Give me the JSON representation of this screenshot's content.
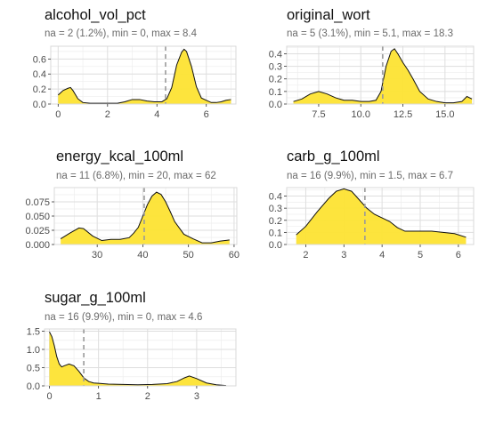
{
  "chart_data": [
    {
      "type": "area",
      "title": "alcohol_vol_pct",
      "subtitle": "na = 2 (1.2%), min = 0, max = 8.4",
      "xlim": [
        -0.3,
        7.2
      ],
      "ylim": [
        0,
        0.77
      ],
      "xticks": [
        0,
        2,
        4,
        6
      ],
      "xtick_labels": [
        "0",
        "2",
        "4",
        "6"
      ],
      "yticks": [
        0,
        0.2,
        0.4,
        0.6
      ],
      "ytick_labels": [
        "0.0",
        "0.2",
        "0.4",
        "0.6"
      ],
      "reference_line_x": 4.35,
      "grid": true,
      "x": [
        0,
        0.2,
        0.4,
        0.5,
        0.6,
        0.8,
        1.0,
        1.3,
        1.6,
        2.0,
        2.4,
        2.7,
        3.0,
        3.3,
        3.6,
        3.9,
        4.2,
        4.4,
        4.6,
        4.8,
        5.0,
        5.1,
        5.2,
        5.4,
        5.6,
        5.8,
        6.0,
        6.2,
        6.4,
        6.6,
        6.8,
        7.0
      ],
      "y": [
        0.12,
        0.18,
        0.21,
        0.22,
        0.18,
        0.07,
        0.02,
        0.01,
        0.01,
        0.01,
        0.01,
        0.03,
        0.06,
        0.06,
        0.04,
        0.03,
        0.03,
        0.07,
        0.22,
        0.52,
        0.69,
        0.73,
        0.7,
        0.5,
        0.23,
        0.08,
        0.05,
        0.02,
        0.02,
        0.03,
        0.05,
        0.06
      ]
    },
    {
      "type": "area",
      "title": "original_wort",
      "subtitle": "na = 5 (3.1%), min = 5.1, max = 18.3",
      "xlim": [
        5.6,
        16.7
      ],
      "ylim": [
        0,
        0.46
      ],
      "xticks": [
        7.5,
        10,
        12.5,
        15
      ],
      "xtick_labels": [
        "7.5",
        "10.0",
        "12.5",
        "15.0"
      ],
      "yticks": [
        0,
        0.1,
        0.2,
        0.3,
        0.4
      ],
      "ytick_labels": [
        "0.0",
        "0.1",
        "0.2",
        "0.3",
        "0.4"
      ],
      "reference_line_x": 11.3,
      "grid": true,
      "x": [
        6.0,
        6.5,
        7.0,
        7.5,
        8.0,
        8.5,
        9.0,
        9.5,
        10.0,
        10.5,
        10.9,
        11.2,
        11.5,
        11.8,
        12.0,
        12.2,
        12.5,
        12.8,
        13.1,
        13.5,
        14.0,
        14.5,
        15.0,
        15.5,
        16.0,
        16.3,
        16.6
      ],
      "y": [
        0.02,
        0.04,
        0.08,
        0.1,
        0.08,
        0.05,
        0.03,
        0.03,
        0.02,
        0.02,
        0.03,
        0.1,
        0.3,
        0.42,
        0.44,
        0.4,
        0.33,
        0.27,
        0.2,
        0.1,
        0.04,
        0.02,
        0.01,
        0.01,
        0.02,
        0.06,
        0.04
      ]
    },
    {
      "type": "area",
      "title": "energy_kcal_100ml",
      "subtitle": "na = 11 (6.8%), min = 20, max = 62",
      "xlim": [
        20.6,
        60.6
      ],
      "ylim": [
        0,
        0.1
      ],
      "xticks": [
        30,
        40,
        50,
        60
      ],
      "xtick_labels": [
        "30",
        "40",
        "50",
        "60"
      ],
      "yticks": [
        0,
        0.025,
        0.05,
        0.075
      ],
      "ytick_labels": [
        "0.000",
        "0.025",
        "0.050",
        "0.075"
      ],
      "reference_line_x": 40.3,
      "grid": true,
      "x": [
        22,
        24,
        26,
        27,
        29,
        31,
        33,
        35,
        37,
        38,
        39,
        40,
        41,
        42,
        43,
        44,
        45,
        46,
        47,
        49,
        51,
        53,
        55,
        57,
        59
      ],
      "y": [
        0.01,
        0.02,
        0.029,
        0.028,
        0.015,
        0.007,
        0.009,
        0.009,
        0.012,
        0.02,
        0.03,
        0.05,
        0.07,
        0.085,
        0.092,
        0.088,
        0.075,
        0.058,
        0.04,
        0.018,
        0.01,
        0.003,
        0.003,
        0.006,
        0.008
      ]
    },
    {
      "type": "area",
      "title": "carb_g_100ml",
      "subtitle": "na = 16 (9.9%), min = 1.5, max = 6.7",
      "xlim": [
        1.5,
        6.4
      ],
      "ylim": [
        0,
        0.47
      ],
      "xticks": [
        2,
        3,
        4,
        5,
        6
      ],
      "xtick_labels": [
        "2",
        "3",
        "4",
        "5",
        "6"
      ],
      "yticks": [
        0,
        0.1,
        0.2,
        0.3,
        0.4
      ],
      "ytick_labels": [
        "0.0",
        "0.1",
        "0.2",
        "0.3",
        "0.4"
      ],
      "reference_line_x": 3.55,
      "grid": true,
      "x": [
        1.75,
        2.0,
        2.3,
        2.6,
        2.8,
        3.0,
        3.2,
        3.4,
        3.6,
        3.8,
        4.0,
        4.2,
        4.4,
        4.6,
        4.8,
        5.0,
        5.3,
        5.6,
        5.9,
        6.2
      ],
      "y": [
        0.08,
        0.15,
        0.27,
        0.38,
        0.44,
        0.46,
        0.44,
        0.37,
        0.3,
        0.25,
        0.22,
        0.19,
        0.14,
        0.11,
        0.11,
        0.11,
        0.11,
        0.1,
        0.09,
        0.06
      ]
    },
    {
      "type": "area",
      "title": "sugar_g_100ml",
      "subtitle": "na = 16 (9.9%), min = 0, max = 4.6",
      "xlim": [
        -0.1,
        3.8
      ],
      "ylim": [
        0,
        1.56
      ],
      "xticks": [
        0,
        1,
        2,
        3
      ],
      "xtick_labels": [
        "0",
        "1",
        "2",
        "3"
      ],
      "yticks": [
        0,
        0.5,
        1.0,
        1.5
      ],
      "ytick_labels": [
        "0.0",
        "0.5",
        "1.0",
        "1.5"
      ],
      "reference_line_x": 0.7,
      "grid": true,
      "x": [
        0,
        0.05,
        0.1,
        0.15,
        0.2,
        0.25,
        0.3,
        0.4,
        0.5,
        0.6,
        0.7,
        0.8,
        0.9,
        1.0,
        1.2,
        1.5,
        1.8,
        2.1,
        2.4,
        2.6,
        2.75,
        2.85,
        3.0,
        3.2,
        3.4,
        3.6
      ],
      "y": [
        1.48,
        1.35,
        1.1,
        0.8,
        0.6,
        0.52,
        0.55,
        0.6,
        0.55,
        0.4,
        0.22,
        0.12,
        0.08,
        0.07,
        0.05,
        0.04,
        0.03,
        0.04,
        0.06,
        0.12,
        0.22,
        0.27,
        0.2,
        0.08,
        0.03,
        0.01
      ]
    }
  ]
}
